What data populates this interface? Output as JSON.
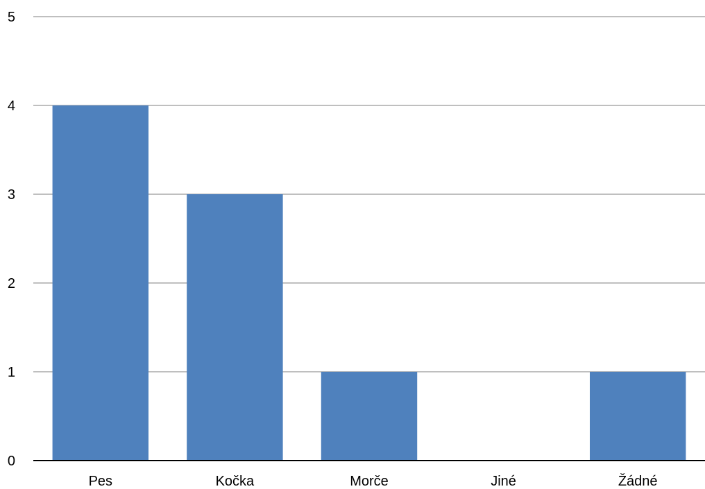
{
  "chart_data": {
    "type": "bar",
    "categories": [
      "Pes",
      "Kočka",
      "Morče",
      "Jiné",
      "Žádné"
    ],
    "values": [
      4,
      3,
      1,
      0,
      1
    ],
    "title": "",
    "xlabel": "",
    "ylabel": "",
    "ylim": [
      0,
      5
    ],
    "yticks": [
      "0",
      "1",
      "2",
      "3",
      "4",
      "5"
    ],
    "grid": true,
    "legend": "none",
    "bar_color": "#4f81bd",
    "grid_color": "#bfbfbf",
    "axis_color": "#000000"
  }
}
